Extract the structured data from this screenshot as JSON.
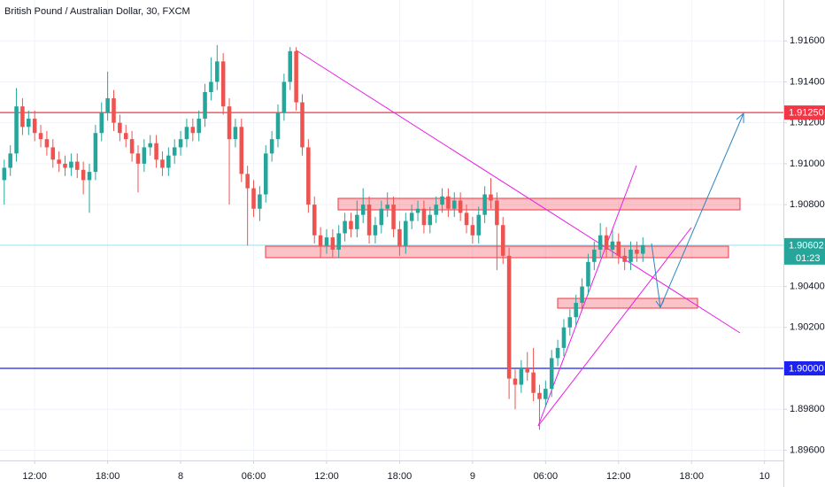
{
  "chart_data": {
    "type": "candlestick",
    "title": "British Pound / Australian Dollar, 30, FXCM",
    "up_color": "#26a69a",
    "down_color": "#ef5350",
    "open": [
      1.9092,
      1.9098,
      1.9105,
      1.9128,
      1.9118,
      1.9122,
      1.9115,
      1.9112,
      1.9108,
      1.9102,
      1.91,
      1.9098,
      1.9101,
      1.9097,
      1.9092,
      1.9096,
      1.9115,
      1.9125,
      1.9132,
      1.912,
      1.9115,
      1.9112,
      1.9105,
      1.91,
      1.9108,
      1.911,
      1.9102,
      1.9098,
      1.9104,
      1.9108,
      1.9112,
      1.9118,
      1.9115,
      1.9122,
      1.9135,
      1.914,
      1.915,
      1.9128,
      1.9112,
      1.9118,
      1.9095,
      1.9088,
      1.9078,
      1.9085,
      1.9105,
      1.9112,
      1.9125,
      1.914,
      1.9155,
      1.913,
      1.9108,
      1.908,
      1.9065,
      1.906,
      1.9064,
      1.9058,
      1.9066,
      1.9072,
      1.9068,
      1.9075,
      1.908,
      1.9065,
      1.907,
      1.9078,
      1.908,
      1.9068,
      1.906,
      1.9072,
      1.9076,
      1.9078,
      1.907,
      1.9075,
      1.908,
      1.9084,
      1.9078,
      1.9082,
      1.9076,
      1.907,
      1.9065,
      1.9075,
      1.9085,
      1.9082,
      1.907,
      1.9055,
      1.8995,
      1.8992,
      1.9,
      1.8998,
      1.8988,
      1.8985,
      1.899,
      1.9005,
      1.901,
      1.902,
      1.9025,
      1.9032,
      1.904,
      1.9052,
      1.9058,
      1.9065,
      1.9058,
      1.9062,
      1.9055,
      1.9052,
      1.9058,
      1.9056
    ],
    "high": [
      1.9102,
      1.9109,
      1.9137,
      1.9132,
      1.9126,
      1.9126,
      1.9119,
      1.9116,
      1.9112,
      1.9106,
      1.9104,
      1.9105,
      1.9105,
      1.9101,
      1.91,
      1.9119,
      1.913,
      1.9145,
      1.9136,
      1.9124,
      1.9119,
      1.9116,
      1.9109,
      1.9112,
      1.9114,
      1.9114,
      1.9106,
      1.9108,
      1.9112,
      1.9116,
      1.9122,
      1.9122,
      1.9126,
      1.9139,
      1.9152,
      1.9158,
      1.9154,
      1.9132,
      1.9122,
      1.9122,
      1.9099,
      1.9092,
      1.9089,
      1.9109,
      1.9116,
      1.9129,
      1.9144,
      1.9157,
      1.9157,
      1.9134,
      1.9112,
      1.9084,
      1.9069,
      1.9068,
      1.9068,
      1.907,
      1.9076,
      1.9076,
      1.9082,
      1.9088,
      1.9084,
      1.9074,
      1.9082,
      1.9086,
      1.9084,
      1.9072,
      1.9076,
      1.908,
      1.9082,
      1.9082,
      1.9079,
      1.9084,
      1.9088,
      1.9088,
      1.9086,
      1.9086,
      1.908,
      1.9074,
      1.9079,
      1.9089,
      1.9093,
      1.9086,
      1.9074,
      1.9059,
      1.9,
      1.9004,
      1.9008,
      1.901,
      1.8992,
      1.8994,
      1.9009,
      1.9014,
      1.9024,
      1.9029,
      1.9036,
      1.9044,
      1.9056,
      1.9062,
      1.9071,
      1.9069,
      1.9068,
      1.9066,
      1.9059,
      1.9062,
      1.9062,
      1.9064
    ],
    "low": [
      1.908,
      1.9094,
      1.9101,
      1.9114,
      1.9114,
      1.9111,
      1.9108,
      1.9104,
      1.9098,
      1.9096,
      1.9094,
      1.9094,
      1.9093,
      1.9085,
      1.9076,
      1.9092,
      1.9111,
      1.9121,
      1.9116,
      1.9111,
      1.9108,
      1.9101,
      1.9086,
      1.9096,
      1.9104,
      1.9098,
      1.9094,
      1.9094,
      1.91,
      1.9104,
      1.9108,
      1.9111,
      1.9111,
      1.9118,
      1.9131,
      1.9136,
      1.9124,
      1.908,
      1.9108,
      1.9091,
      1.906,
      1.9074,
      1.9072,
      1.9081,
      1.9101,
      1.9108,
      1.9121,
      1.9136,
      1.9126,
      1.9104,
      1.9076,
      1.9061,
      1.9054,
      1.9056,
      1.9054,
      1.9054,
      1.9062,
      1.9064,
      1.9064,
      1.9071,
      1.9061,
      1.9061,
      1.9066,
      1.9074,
      1.9064,
      1.9055,
      1.9056,
      1.9068,
      1.9072,
      1.9066,
      1.9066,
      1.9071,
      1.9076,
      1.9074,
      1.9074,
      1.9072,
      1.9066,
      1.9061,
      1.9061,
      1.9071,
      1.9078,
      1.9048,
      1.9051,
      1.8985,
      1.898,
      1.8988,
      1.8994,
      1.8984,
      1.897,
      1.8981,
      1.8986,
      1.9001,
      1.9006,
      1.9016,
      1.9021,
      1.9028,
      1.9036,
      1.9048,
      1.9054,
      1.9054,
      1.9054,
      1.9051,
      1.9048,
      1.9048,
      1.9052,
      1.9052
    ],
    "close": [
      1.9098,
      1.9105,
      1.9128,
      1.9118,
      1.9122,
      1.9115,
      1.9112,
      1.9108,
      1.9102,
      1.91,
      1.9098,
      1.9101,
      1.9097,
      1.9092,
      1.9096,
      1.9115,
      1.9125,
      1.9132,
      1.912,
      1.9115,
      1.9112,
      1.9105,
      1.91,
      1.9108,
      1.911,
      1.9102,
      1.9098,
      1.9104,
      1.9108,
      1.9112,
      1.9118,
      1.9115,
      1.9122,
      1.9135,
      1.914,
      1.915,
      1.9128,
      1.9112,
      1.9118,
      1.9095,
      1.9088,
      1.9078,
      1.9085,
      1.9105,
      1.9112,
      1.9125,
      1.914,
      1.9155,
      1.913,
      1.9108,
      1.908,
      1.9065,
      1.906,
      1.9064,
      1.9058,
      1.9066,
      1.9072,
      1.9068,
      1.9075,
      1.908,
      1.9065,
      1.907,
      1.9078,
      1.908,
      1.9068,
      1.906,
      1.9072,
      1.9076,
      1.9078,
      1.907,
      1.9075,
      1.908,
      1.9084,
      1.9078,
      1.9082,
      1.9076,
      1.907,
      1.9065,
      1.9075,
      1.9085,
      1.9082,
      1.907,
      1.9055,
      1.8995,
      1.8992,
      1.9,
      1.8998,
      1.8988,
      1.8985,
      1.899,
      1.9005,
      1.901,
      1.902,
      1.9025,
      1.9032,
      1.904,
      1.9052,
      1.9058,
      1.9065,
      1.9058,
      1.9062,
      1.9055,
      1.9052,
      1.9058,
      1.9056,
      1.90602
    ],
    "xlim": [
      -0.7,
      128.1
    ],
    "xticks": [
      {
        "value": 5,
        "label": "12:00"
      },
      {
        "value": 17,
        "label": "18:00"
      },
      {
        "value": 29,
        "label": "8"
      },
      {
        "value": 41,
        "label": "06:00"
      },
      {
        "value": 53,
        "label": "12:00"
      },
      {
        "value": 65,
        "label": "18:00"
      },
      {
        "value": 77,
        "label": "9"
      },
      {
        "value": 89,
        "label": "06:00"
      },
      {
        "value": 101,
        "label": "12:00"
      },
      {
        "value": 113,
        "label": "18:00"
      },
      {
        "value": 125,
        "label": "10"
      }
    ],
    "ylim": [
      1.8955,
      1.918
    ],
    "yticks": [
      {
        "value": 1.896,
        "label": "1.89600"
      },
      {
        "value": 1.898,
        "label": "1.89800"
      },
      {
        "value": 1.9,
        "label": "1.90000"
      },
      {
        "value": 1.902,
        "label": "1.90200"
      },
      {
        "value": 1.904,
        "label": "1.90400"
      },
      {
        "value": 1.906,
        "label": "1.90600"
      },
      {
        "value": 1.908,
        "label": "1.90800"
      },
      {
        "value": 1.91,
        "label": "1.91000"
      },
      {
        "value": 1.912,
        "label": "1.91200"
      },
      {
        "value": 1.914,
        "label": "1.91400"
      },
      {
        "value": 1.916,
        "label": "1.91600"
      }
    ],
    "grid": true,
    "levels": [
      {
        "value": 1.9125,
        "label": "1.91250",
        "color": "#f23645"
      },
      {
        "value": 1.9,
        "label": "1.90000",
        "color": "#1e22f0"
      }
    ],
    "last_price": {
      "value": 1.90602,
      "label": "1.90602",
      "countdown": "01:23",
      "color": "#26a69a",
      "line_color": "#a5e3ee"
    }
  }
}
